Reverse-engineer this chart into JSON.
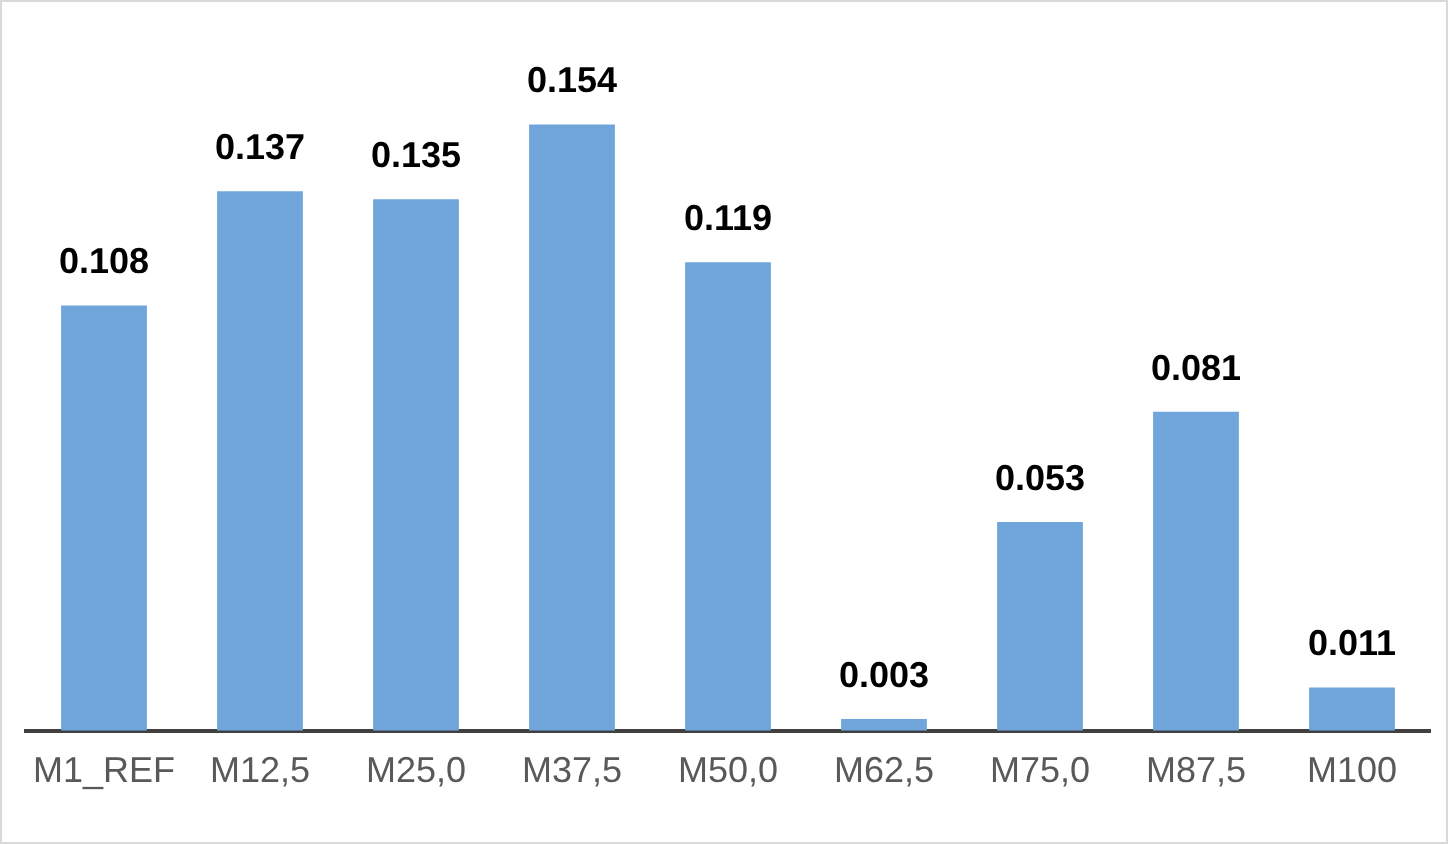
{
  "chart_data": {
    "type": "bar",
    "categories": [
      "M1_REF",
      "M12,5",
      "M25,0",
      "M37,5",
      "M50,0",
      "M62,5",
      "M75,0",
      "M87,5",
      "M100"
    ],
    "values": [
      0.108,
      0.137,
      0.135,
      0.154,
      0.119,
      0.003,
      0.053,
      0.081,
      0.011
    ],
    "color": "#6fa5da",
    "data_labels": true,
    "legend": false,
    "grid": false
  }
}
